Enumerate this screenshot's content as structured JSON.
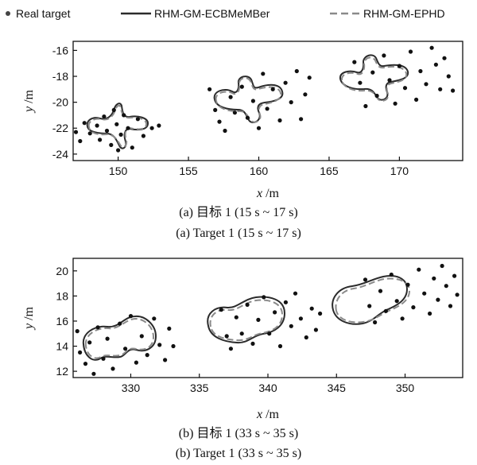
{
  "legend": {
    "real_target": "Real target",
    "ecbmember": "RHM-GM-ECBMeMBer",
    "ephd": "RHM-GM-EPHD"
  },
  "colors": {
    "points": "#111111",
    "ecbmember": "#2b2b2b",
    "ephd": "#8a8a8a"
  },
  "captions": {
    "a_cn": "(a) 目标 1 (15 s ~ 17 s)",
    "a_en": "(a) Target 1 (15 s ~ 17 s)",
    "b_cn": "(b) 目标 1 (33 s ~ 35 s)",
    "b_en": "(b) Target 1 (33 s ~ 35 s)"
  },
  "chart_data": [
    {
      "type": "scatter",
      "xlabel_var": "x",
      "xlabel_unit": " /m",
      "ylabel_var": "y",
      "ylabel_unit": " /m",
      "xlim": [
        146.8,
        174.5
      ],
      "ylim": [
        -24.5,
        -15.3
      ],
      "xticks": [
        150,
        155,
        160,
        165,
        170
      ],
      "yticks": [
        -16,
        -18,
        -20,
        -22,
        -24
      ],
      "points": [
        [
          147.0,
          -22.3
        ],
        [
          147.3,
          -23.0
        ],
        [
          147.6,
          -21.6
        ],
        [
          148.0,
          -22.4
        ],
        [
          148.5,
          -21.8
        ],
        [
          148.7,
          -22.9
        ],
        [
          149.0,
          -21.1
        ],
        [
          149.2,
          -22.2
        ],
        [
          149.5,
          -23.3
        ],
        [
          149.7,
          -20.6
        ],
        [
          149.9,
          -21.7
        ],
        [
          150.0,
          -23.7
        ],
        [
          150.2,
          -22.5
        ],
        [
          150.4,
          -21.0
        ],
        [
          150.7,
          -22.0
        ],
        [
          151.0,
          -23.5
        ],
        [
          151.4,
          -21.3
        ],
        [
          151.8,
          -22.6
        ],
        [
          152.4,
          -22.0
        ],
        [
          152.9,
          -21.8
        ],
        [
          156.5,
          -19.0
        ],
        [
          156.9,
          -20.6
        ],
        [
          157.2,
          -21.5
        ],
        [
          157.6,
          -22.2
        ],
        [
          158.0,
          -19.6
        ],
        [
          158.3,
          -20.8
        ],
        [
          158.8,
          -18.8
        ],
        [
          159.2,
          -21.2
        ],
        [
          159.6,
          -19.9
        ],
        [
          160.0,
          -22.0
        ],
        [
          160.3,
          -17.8
        ],
        [
          160.6,
          -20.5
        ],
        [
          161.0,
          -19.0
        ],
        [
          161.5,
          -21.4
        ],
        [
          161.9,
          -18.5
        ],
        [
          162.3,
          -20.0
        ],
        [
          162.7,
          -17.6
        ],
        [
          163.0,
          -21.3
        ],
        [
          163.3,
          -19.4
        ],
        [
          163.6,
          -18.1
        ],
        [
          166.8,
          -16.9
        ],
        [
          167.2,
          -18.5
        ],
        [
          167.6,
          -20.3
        ],
        [
          168.1,
          -17.7
        ],
        [
          168.4,
          -19.5
        ],
        [
          168.9,
          -16.4
        ],
        [
          169.3,
          -18.3
        ],
        [
          169.7,
          -20.1
        ],
        [
          170.0,
          -17.2
        ],
        [
          170.4,
          -18.9
        ],
        [
          170.8,
          -16.1
        ],
        [
          171.2,
          -19.8
        ],
        [
          171.5,
          -17.6
        ],
        [
          171.9,
          -18.6
        ],
        [
          172.3,
          -15.8
        ],
        [
          172.6,
          -17.1
        ],
        [
          172.9,
          -19.0
        ],
        [
          173.2,
          -16.6
        ],
        [
          173.5,
          -18.0
        ],
        [
          173.8,
          -19.1
        ]
      ]
    },
    {
      "type": "scatter",
      "xlabel_var": "x",
      "xlabel_unit": " /m",
      "ylabel_var": "y",
      "ylabel_unit": " /m",
      "xlim": [
        325.8,
        354.2
      ],
      "ylim": [
        11.5,
        21.0
      ],
      "xticks": [
        330,
        335,
        340,
        345,
        350
      ],
      "yticks": [
        12,
        14,
        16,
        18,
        20
      ],
      "points": [
        [
          326.1,
          15.2
        ],
        [
          326.3,
          13.5
        ],
        [
          326.7,
          12.6
        ],
        [
          327.0,
          14.3
        ],
        [
          327.3,
          11.8
        ],
        [
          327.6,
          15.5
        ],
        [
          328.0,
          13.0
        ],
        [
          328.3,
          14.6
        ],
        [
          328.7,
          12.2
        ],
        [
          329.2,
          15.8
        ],
        [
          329.6,
          13.8
        ],
        [
          330.0,
          16.4
        ],
        [
          330.4,
          12.7
        ],
        [
          330.8,
          14.8
        ],
        [
          331.2,
          13.3
        ],
        [
          331.7,
          16.2
        ],
        [
          332.1,
          14.1
        ],
        [
          332.5,
          12.9
        ],
        [
          332.8,
          15.4
        ],
        [
          333.1,
          14.0
        ],
        [
          336.6,
          16.9
        ],
        [
          337.0,
          14.8
        ],
        [
          337.3,
          13.8
        ],
        [
          337.7,
          16.3
        ],
        [
          338.1,
          15.0
        ],
        [
          338.5,
          17.3
        ],
        [
          338.9,
          14.2
        ],
        [
          339.3,
          16.1
        ],
        [
          339.7,
          17.9
        ],
        [
          340.1,
          15.0
        ],
        [
          340.5,
          16.7
        ],
        [
          340.9,
          14.0
        ],
        [
          341.3,
          17.5
        ],
        [
          341.7,
          15.6
        ],
        [
          342.0,
          18.2
        ],
        [
          342.4,
          16.2
        ],
        [
          342.8,
          14.7
        ],
        [
          343.2,
          17.0
        ],
        [
          343.5,
          15.3
        ],
        [
          343.8,
          16.6
        ],
        [
          347.1,
          19.3
        ],
        [
          347.4,
          17.2
        ],
        [
          347.8,
          15.9
        ],
        [
          348.2,
          18.4
        ],
        [
          348.6,
          16.8
        ],
        [
          349.0,
          19.7
        ],
        [
          349.4,
          17.6
        ],
        [
          349.8,
          16.2
        ],
        [
          350.2,
          18.9
        ],
        [
          350.6,
          17.1
        ],
        [
          351.0,
          20.1
        ],
        [
          351.4,
          18.2
        ],
        [
          351.8,
          16.6
        ],
        [
          352.1,
          19.4
        ],
        [
          352.4,
          17.7
        ],
        [
          352.7,
          20.4
        ],
        [
          353.0,
          18.8
        ],
        [
          353.3,
          17.2
        ],
        [
          353.6,
          19.6
        ],
        [
          353.8,
          18.1
        ]
      ]
    }
  ]
}
